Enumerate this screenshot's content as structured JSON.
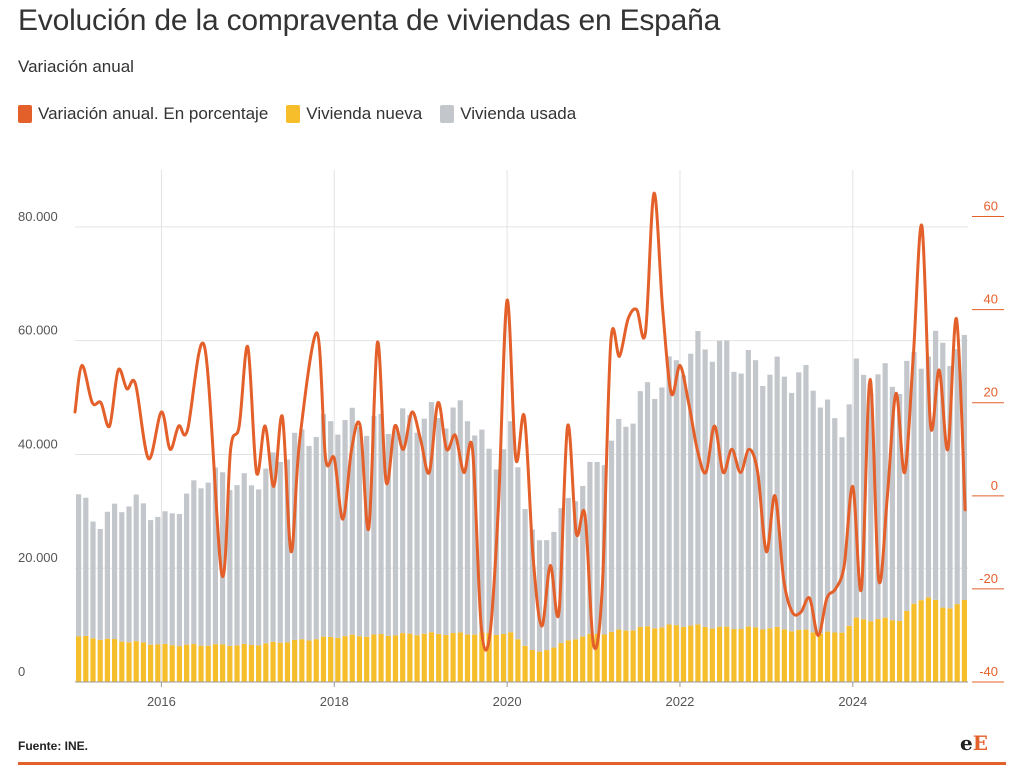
{
  "header": {
    "title": "Evolución de la compraventa de viviendas en España",
    "subtitle": "Variación anual"
  },
  "legend": [
    {
      "label": "Variación anual. En porcentaje",
      "color": "#e4602a"
    },
    {
      "label": "Vivienda nueva",
      "color": "#f7be2b"
    },
    {
      "label": "Vivienda usada",
      "color": "#c3c7cc"
    }
  ],
  "footer": {
    "source": "Fuente: INE.",
    "logo_part1": "e",
    "logo_part2": "E"
  },
  "chart_data": {
    "type": "bar+line",
    "x_start": "2015-01",
    "x_end": "2025-04",
    "frequency": "monthly",
    "left_axis": {
      "ylim": [
        0,
        90000
      ],
      "ticks": [
        0,
        20000,
        40000,
        60000,
        80000
      ],
      "tick_labels": [
        "0",
        "20.000",
        "40.000",
        "60.000",
        "80.000"
      ]
    },
    "right_axis": {
      "ylim": [
        -40,
        70
      ],
      "ticks": [
        -40,
        -20,
        0,
        20,
        40,
        60
      ],
      "tick_labels": [
        "-40",
        "-20",
        "0",
        "20",
        "40",
        "60"
      ]
    },
    "x_tick_labels": [
      "2016",
      "2018",
      "2020",
      "2022",
      "2024"
    ],
    "grid": true,
    "series": [
      {
        "name": "Vivienda nueva",
        "type": "stacked-bar",
        "color": "#f7be2b",
        "anchors": [
          [
            2015.0,
            8000
          ],
          [
            2016.0,
            6500
          ],
          [
            2017.0,
            6500
          ],
          [
            2018.0,
            8000
          ],
          [
            2019.0,
            8500
          ],
          [
            2020.0,
            8500
          ],
          [
            2020.3,
            5000
          ],
          [
            2020.8,
            8000
          ],
          [
            2021.5,
            9500
          ],
          [
            2022.0,
            10000
          ],
          [
            2022.5,
            9500
          ],
          [
            2023.0,
            9500
          ],
          [
            2023.8,
            8500
          ],
          [
            2024.0,
            11000
          ],
          [
            2024.5,
            11000
          ],
          [
            2024.8,
            15500
          ],
          [
            2025.0,
            13000
          ],
          [
            2025.25,
            14000
          ]
        ]
      },
      {
        "name": "Vivienda usada",
        "type": "stacked-bar",
        "color": "#c3c7cc",
        "anchors": [
          [
            2015.0,
            25000
          ],
          [
            2015.2,
            20000
          ],
          [
            2015.6,
            25000
          ],
          [
            2016.0,
            22000
          ],
          [
            2016.5,
            30000
          ],
          [
            2017.0,
            28000
          ],
          [
            2017.5,
            35000
          ],
          [
            2018.0,
            38000
          ],
          [
            2018.5,
            37000
          ],
          [
            2019.0,
            38000
          ],
          [
            2019.5,
            39000
          ],
          [
            2019.8,
            30000
          ],
          [
            2020.0,
            35000
          ],
          [
            2020.3,
            18000
          ],
          [
            2020.6,
            23000
          ],
          [
            2021.0,
            30000
          ],
          [
            2021.5,
            40000
          ],
          [
            2022.0,
            47000
          ],
          [
            2022.3,
            50000
          ],
          [
            2022.6,
            47000
          ],
          [
            2023.0,
            45000
          ],
          [
            2023.5,
            44000
          ],
          [
            2023.8,
            35000
          ],
          [
            2024.0,
            43000
          ],
          [
            2024.5,
            42000
          ],
          [
            2024.8,
            43000
          ],
          [
            2025.0,
            46000
          ],
          [
            2025.25,
            44000
          ]
        ]
      },
      {
        "name": "Variación anual. En porcentaje",
        "type": "line",
        "axis": "right",
        "color": "#e4602a",
        "points": [
          [
            2015.0,
            18
          ],
          [
            2015.08,
            28
          ],
          [
            2015.2,
            20
          ],
          [
            2015.3,
            20
          ],
          [
            2015.4,
            15
          ],
          [
            2015.5,
            27
          ],
          [
            2015.6,
            23
          ],
          [
            2015.7,
            24
          ],
          [
            2015.85,
            8
          ],
          [
            2016.0,
            18
          ],
          [
            2016.1,
            10
          ],
          [
            2016.2,
            15
          ],
          [
            2016.3,
            14
          ],
          [
            2016.5,
            32
          ],
          [
            2016.7,
            -17
          ],
          [
            2016.8,
            10
          ],
          [
            2016.9,
            15
          ],
          [
            2017.0,
            32
          ],
          [
            2017.1,
            5
          ],
          [
            2017.2,
            15
          ],
          [
            2017.3,
            2
          ],
          [
            2017.4,
            17
          ],
          [
            2017.5,
            -12
          ],
          [
            2017.6,
            12
          ],
          [
            2017.8,
            35
          ],
          [
            2017.9,
            8
          ],
          [
            2018.0,
            8
          ],
          [
            2018.1,
            -5
          ],
          [
            2018.2,
            10
          ],
          [
            2018.3,
            15
          ],
          [
            2018.4,
            -7
          ],
          [
            2018.5,
            33
          ],
          [
            2018.6,
            3
          ],
          [
            2018.7,
            15
          ],
          [
            2018.8,
            10
          ],
          [
            2018.9,
            18
          ],
          [
            2019.0,
            12
          ],
          [
            2019.1,
            5
          ],
          [
            2019.2,
            20
          ],
          [
            2019.3,
            10
          ],
          [
            2019.4,
            13
          ],
          [
            2019.5,
            5
          ],
          [
            2019.6,
            10
          ],
          [
            2019.7,
            -28
          ],
          [
            2019.8,
            -30
          ],
          [
            2019.9,
            -2
          ],
          [
            2020.0,
            42
          ],
          [
            2020.1,
            8
          ],
          [
            2020.2,
            17
          ],
          [
            2020.3,
            -13
          ],
          [
            2020.4,
            -28
          ],
          [
            2020.5,
            -15
          ],
          [
            2020.6,
            -25
          ],
          [
            2020.7,
            15
          ],
          [
            2020.8,
            -8
          ],
          [
            2020.9,
            -4
          ],
          [
            2021.0,
            -32
          ],
          [
            2021.1,
            -20
          ],
          [
            2021.2,
            33
          ],
          [
            2021.3,
            30
          ],
          [
            2021.4,
            38
          ],
          [
            2021.5,
            40
          ],
          [
            2021.6,
            35
          ],
          [
            2021.7,
            65
          ],
          [
            2021.8,
            40
          ],
          [
            2021.9,
            22
          ],
          [
            2022.0,
            28
          ],
          [
            2022.1,
            20
          ],
          [
            2022.2,
            10
          ],
          [
            2022.3,
            5
          ],
          [
            2022.4,
            15
          ],
          [
            2022.5,
            5
          ],
          [
            2022.6,
            10
          ],
          [
            2022.7,
            5
          ],
          [
            2022.8,
            10
          ],
          [
            2022.9,
            5
          ],
          [
            2023.0,
            -12
          ],
          [
            2023.1,
            0
          ],
          [
            2023.2,
            -18
          ],
          [
            2023.3,
            -25
          ],
          [
            2023.4,
            -25
          ],
          [
            2023.5,
            -22
          ],
          [
            2023.6,
            -30
          ],
          [
            2023.7,
            -22
          ],
          [
            2023.8,
            -20
          ],
          [
            2023.9,
            -15
          ],
          [
            2024.0,
            2
          ],
          [
            2024.1,
            -20
          ],
          [
            2024.2,
            25
          ],
          [
            2024.3,
            -18
          ],
          [
            2024.4,
            0
          ],
          [
            2024.5,
            22
          ],
          [
            2024.6,
            5
          ],
          [
            2024.7,
            30
          ],
          [
            2024.8,
            58
          ],
          [
            2024.9,
            15
          ],
          [
            2025.0,
            27
          ],
          [
            2025.1,
            10
          ],
          [
            2025.2,
            38
          ],
          [
            2025.3,
            -3
          ]
        ]
      }
    ]
  }
}
